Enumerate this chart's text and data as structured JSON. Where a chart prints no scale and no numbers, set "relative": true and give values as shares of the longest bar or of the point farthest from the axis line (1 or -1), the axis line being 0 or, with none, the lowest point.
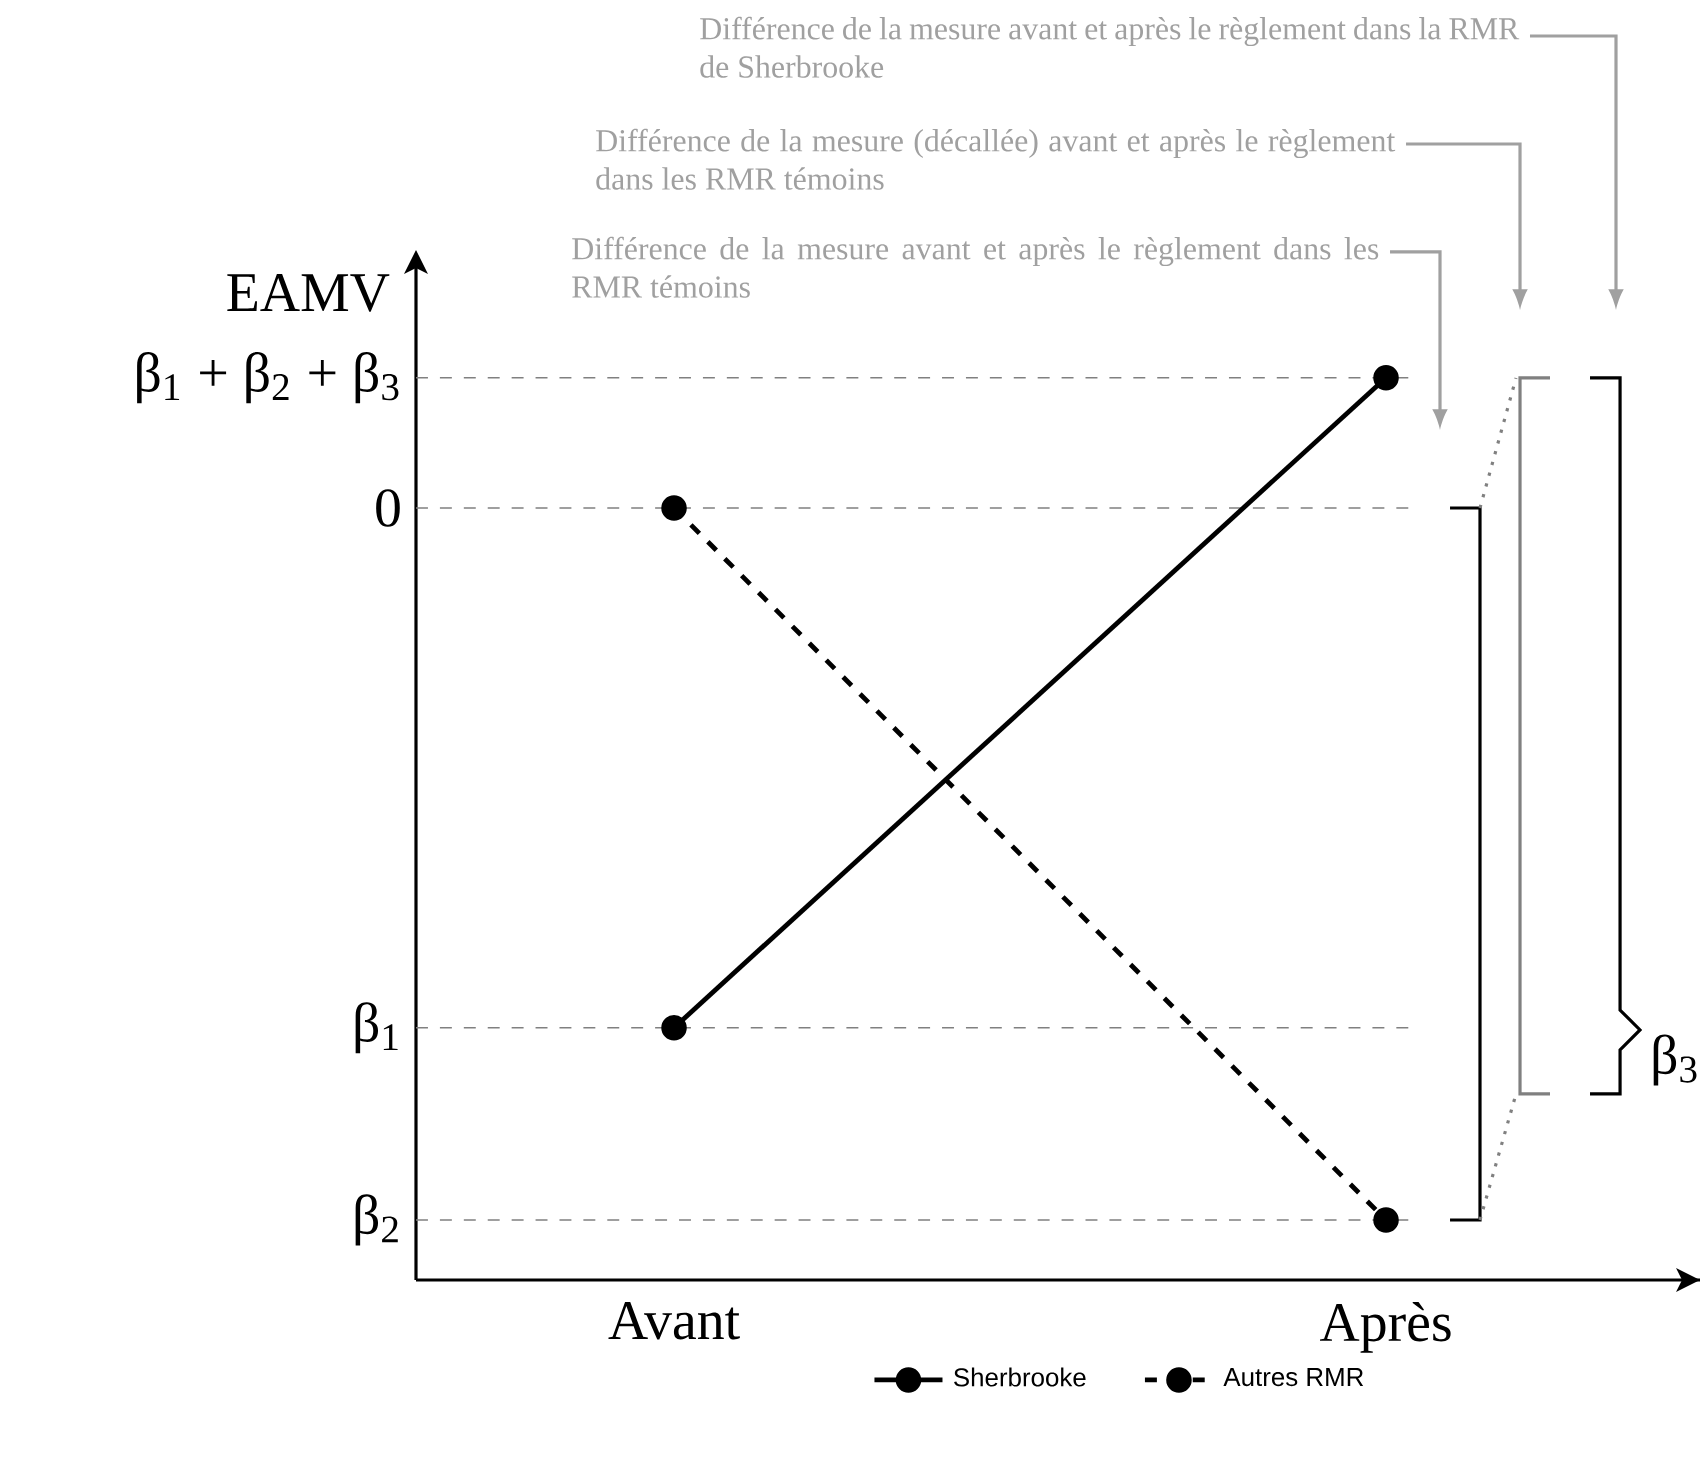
{
  "chart_data": {
    "type": "line",
    "ylabel": "EAMV",
    "categories": [
      "Avant",
      "Après"
    ],
    "relative": true,
    "marker": "circle",
    "legend": "bottom",
    "series": [
      {
        "name": "Sherbrooke",
        "color": "#000000",
        "line_style": "solid",
        "values": [
          -0.73,
          0.183
        ]
      },
      {
        "name": "Autres RMR",
        "color": "#000000",
        "line_style": "dashed",
        "values": [
          0,
          -1
        ]
      }
    ],
    "ref_lines": [
      {
        "axis": "y",
        "value": 0.183,
        "label": "β$_{1}$ + β$_{2}$ + β$_{3}$",
        "color": "#808080",
        "line_style": "dashed"
      },
      {
        "axis": "y",
        "value": 0,
        "label": "0",
        "color": "#808080",
        "line_style": "dashed"
      },
      {
        "axis": "y",
        "value": -0.73,
        "label": "β$_{1}$",
        "color": "#808080",
        "line_style": "dashed"
      },
      {
        "axis": "y",
        "value": -1,
        "label": "β$_{2}$",
        "color": "#808080",
        "line_style": "dashed"
      }
    ],
    "annotations": [
      "Différence de la mesure avant et après le règlement dans la RMR de Sherbrooke",
      "Différence de la mesure (décallée) avant et après le règlement dans les RMR témoins",
      "Différence de la mesure avant et après le règlement dans les RMR témoins",
      "β$_{3}$"
    ]
  }
}
